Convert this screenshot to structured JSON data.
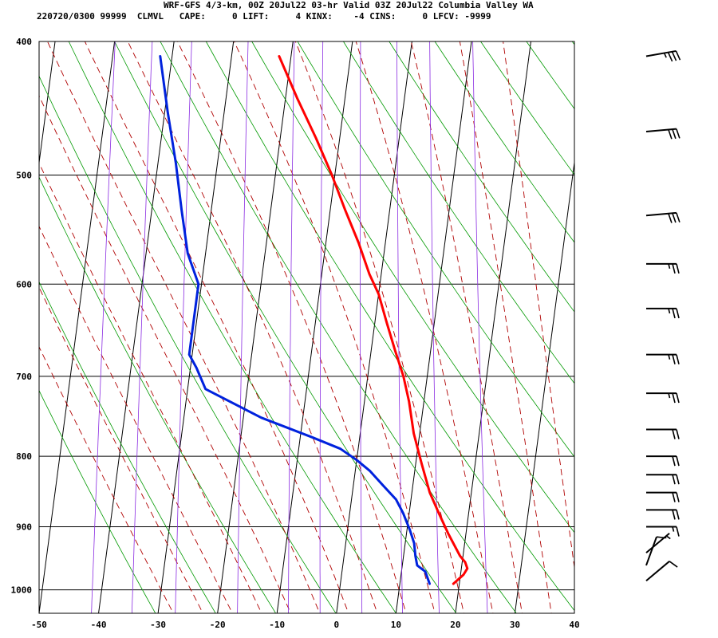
{
  "header": {
    "line1": "WRF-GFS 4/3-km, 00Z 20Jul22 03-hr Valid 03Z 20Jul22 Columbia Valley WA",
    "line2": "220720/0300 99999  CLMVL   CAPE:     0 LIFT:     4 KINX:    -4 CINS:     0 LFCV: -9999"
  },
  "chart_data": {
    "type": "line",
    "title": "WRF-GFS 4/3-km, 00Z 20Jul22 03-hr Valid 03Z 20Jul22 Columbia Valley WA",
    "xlabel": "",
    "ylabel": "",
    "xlim": [
      -50,
      40
    ],
    "ylim": [
      1040,
      400
    ],
    "x_ticks": [
      -50,
      -40,
      -30,
      -20,
      -10,
      0,
      10,
      20,
      30,
      40
    ],
    "y_ticks": [
      400,
      500,
      600,
      700,
      800,
      900,
      1000
    ],
    "y_scale": "log-pressure",
    "grid": true,
    "colors": {
      "temperature": "#ff0000",
      "dewpoint": "#0022dd",
      "dry_adiabats": "#009900",
      "moist_adiabats": "#b00000",
      "mixing_ratio": "#8a2be2",
      "grid": "#000000"
    },
    "series": [
      {
        "key": "temperature",
        "points": [
          [
            -22,
            410
          ],
          [
            -18,
            440
          ],
          [
            -14,
            470
          ],
          [
            -10.5,
            500
          ],
          [
            -7.5,
            530
          ],
          [
            -4.5,
            560
          ],
          [
            -2,
            590
          ],
          [
            0,
            610
          ],
          [
            2,
            640
          ],
          [
            4,
            670
          ],
          [
            6,
            700
          ],
          [
            7.5,
            730
          ],
          [
            9,
            770
          ],
          [
            11,
            810
          ],
          [
            13,
            850
          ],
          [
            15,
            880
          ],
          [
            17,
            910
          ],
          [
            19.5,
            945
          ],
          [
            20.5,
            955
          ],
          [
            21,
            965
          ],
          [
            20.5,
            975
          ],
          [
            19.5,
            985
          ],
          [
            19,
            990
          ]
        ]
      },
      {
        "key": "dewpoint",
        "points": [
          [
            -42,
            410
          ],
          [
            -39.5,
            450
          ],
          [
            -37,
            490
          ],
          [
            -35,
            530
          ],
          [
            -33,
            570
          ],
          [
            -30.5,
            600
          ],
          [
            -30.5,
            650
          ],
          [
            -30.5,
            675
          ],
          [
            -29,
            690
          ],
          [
            -27,
            715
          ],
          [
            -17,
            750
          ],
          [
            -8,
            775
          ],
          [
            -3,
            790
          ],
          [
            0,
            805
          ],
          [
            2.5,
            820
          ],
          [
            5,
            840
          ],
          [
            7.5,
            860
          ],
          [
            9,
            880
          ],
          [
            10.5,
            905
          ],
          [
            11.5,
            925
          ],
          [
            12,
            945
          ],
          [
            12.5,
            960
          ],
          [
            14,
            970
          ],
          [
            14.5,
            980
          ],
          [
            15,
            990
          ]
        ]
      }
    ],
    "wind_barbs": [
      {
        "pressure": 410,
        "direction": 260,
        "speed_kt": 35
      },
      {
        "pressure": 465,
        "direction": 265,
        "speed_kt": 30
      },
      {
        "pressure": 535,
        "direction": 265,
        "speed_kt": 30
      },
      {
        "pressure": 580,
        "direction": 270,
        "speed_kt": 25
      },
      {
        "pressure": 625,
        "direction": 270,
        "speed_kt": 25
      },
      {
        "pressure": 675,
        "direction": 270,
        "speed_kt": 25
      },
      {
        "pressure": 720,
        "direction": 270,
        "speed_kt": 25
      },
      {
        "pressure": 765,
        "direction": 270,
        "speed_kt": 20
      },
      {
        "pressure": 800,
        "direction": 270,
        "speed_kt": 20
      },
      {
        "pressure": 825,
        "direction": 270,
        "speed_kt": 20
      },
      {
        "pressure": 850,
        "direction": 270,
        "speed_kt": 20
      },
      {
        "pressure": 875,
        "direction": 270,
        "speed_kt": 20
      },
      {
        "pressure": 900,
        "direction": 270,
        "speed_kt": 15
      },
      {
        "pressure": 940,
        "direction": 230,
        "speed_kt": 5
      },
      {
        "pressure": 960,
        "direction": 200,
        "speed_kt": 10
      },
      {
        "pressure": 985,
        "direction": 230,
        "speed_kt": 10
      }
    ]
  }
}
